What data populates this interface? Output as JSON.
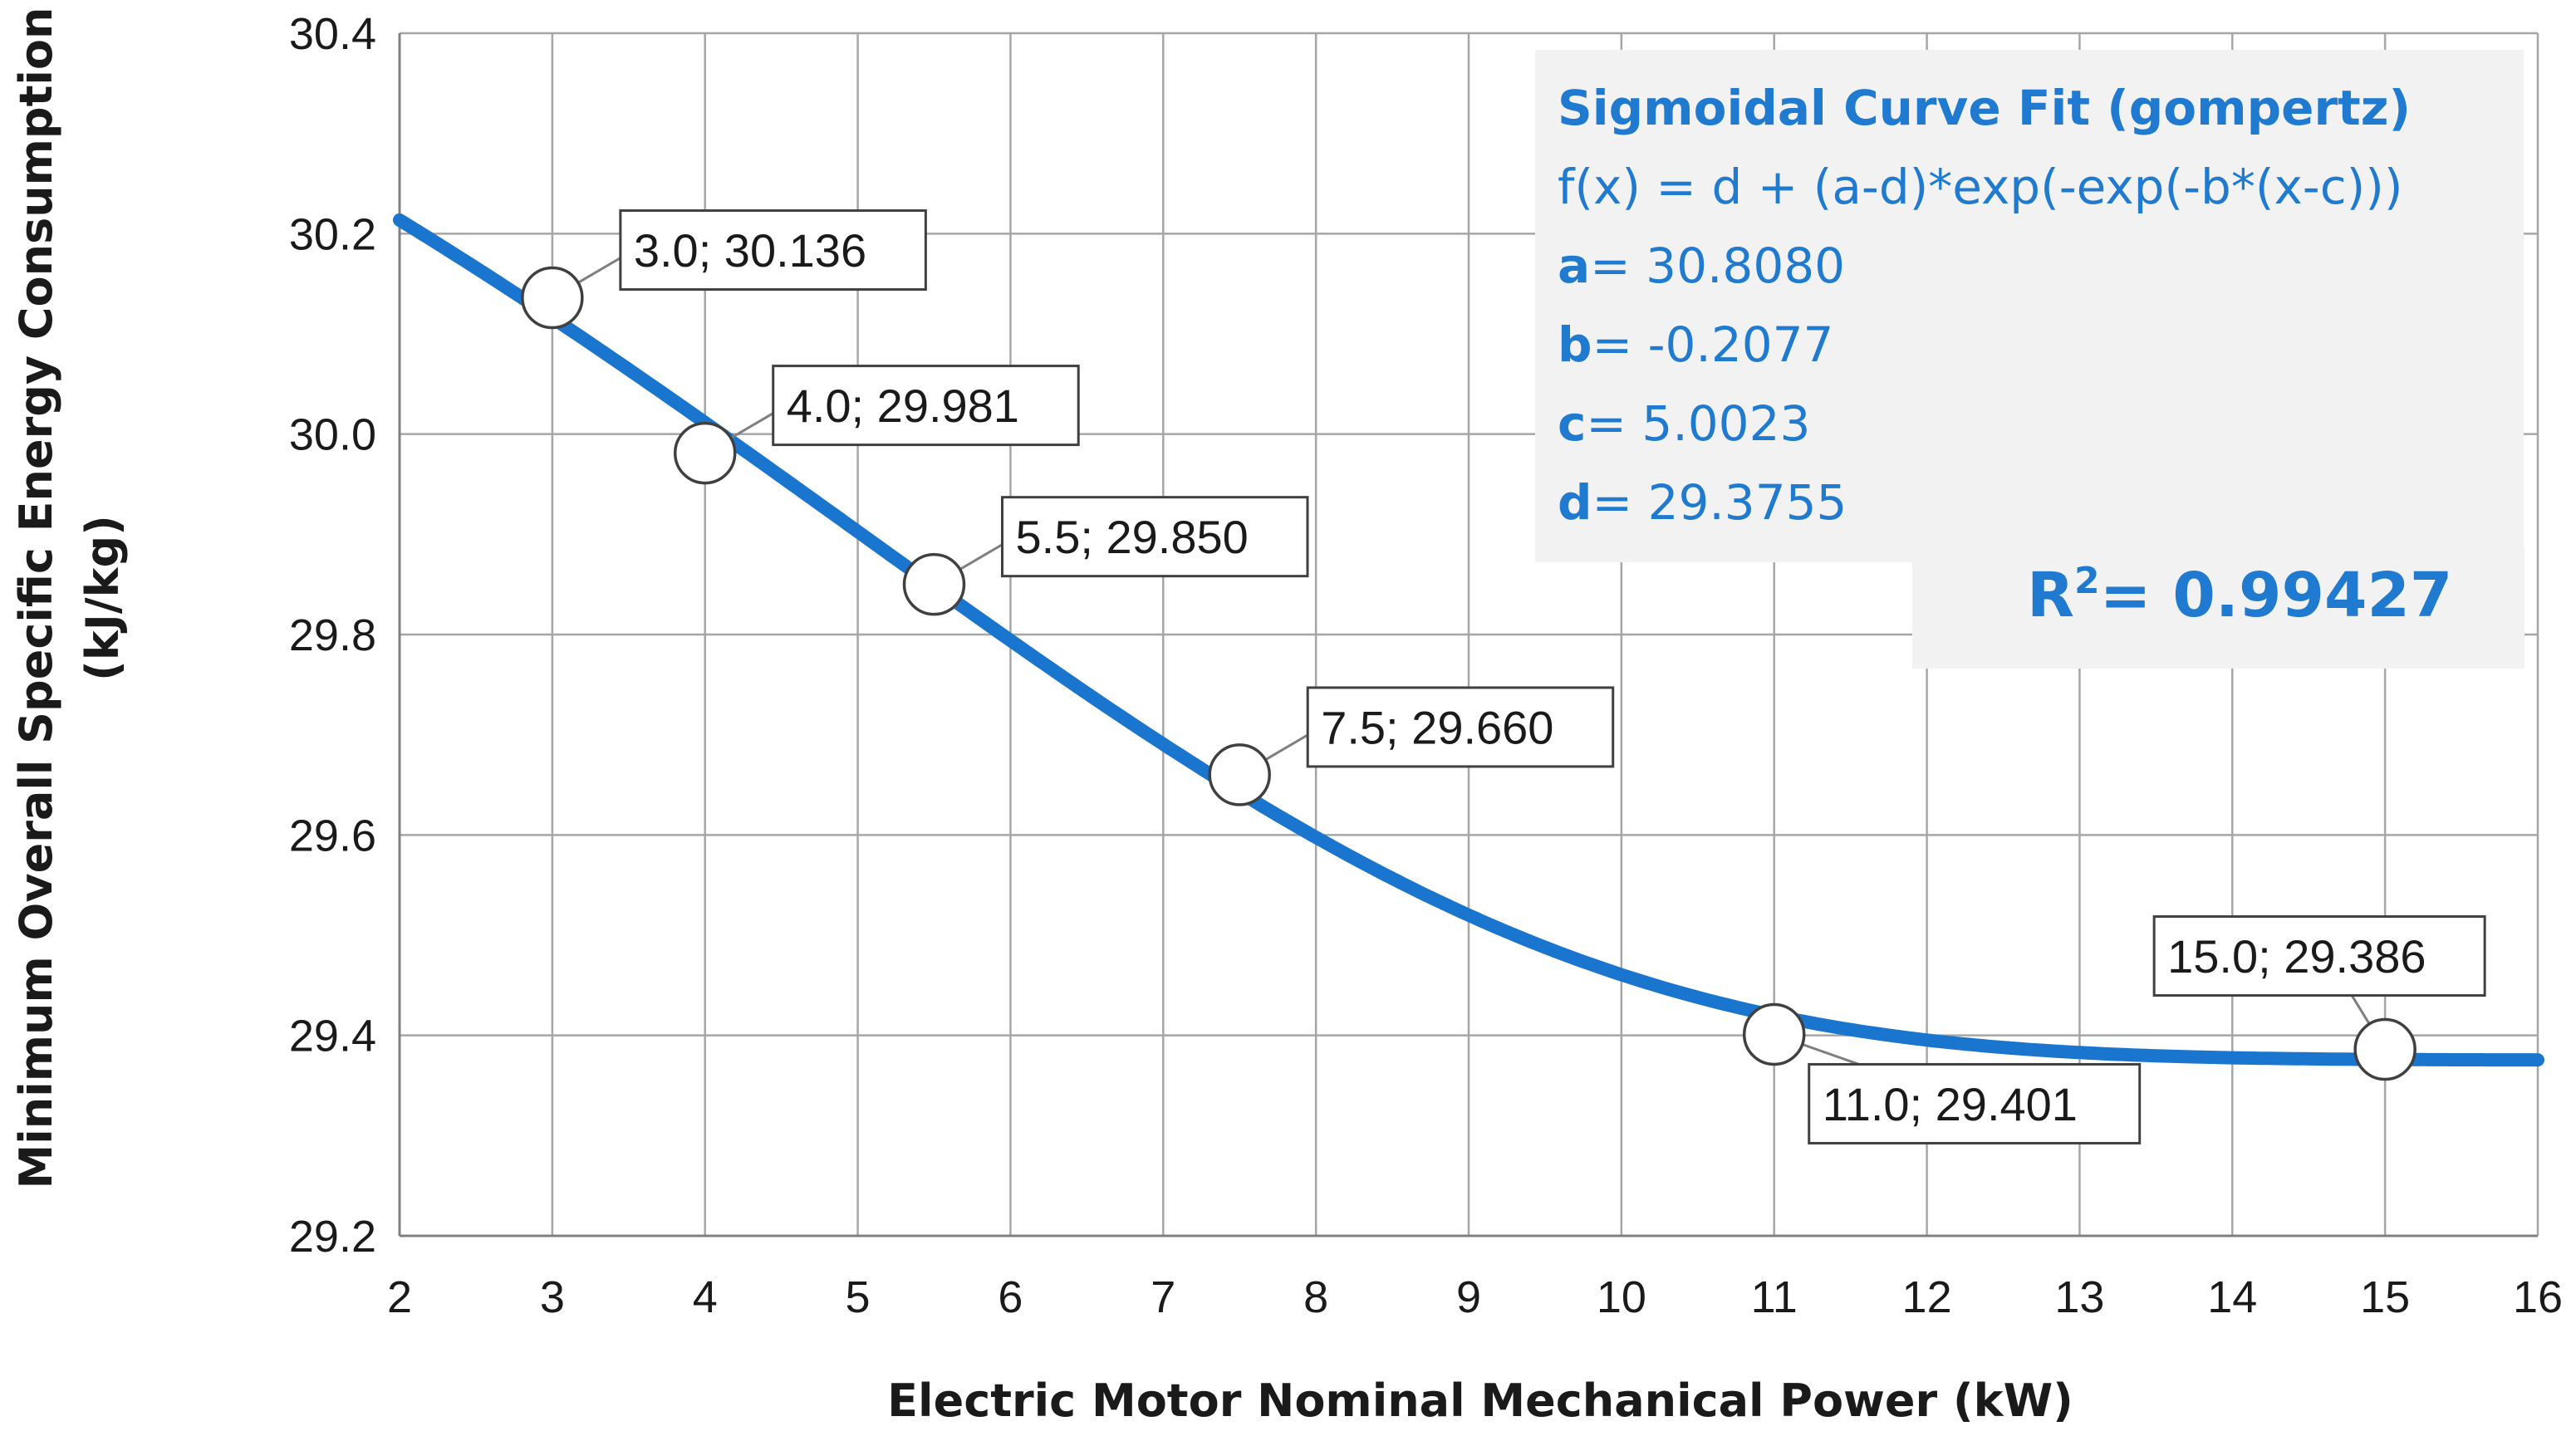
{
  "chart_data": {
    "type": "line",
    "title": "",
    "xlabel": "Electric Motor Nominal Mechanical Power (kW)",
    "ylabel_line1": "Minimum Overall Specific Energy Consumption",
    "ylabel_line2": "(kJ/kg)",
    "xlim": [
      2,
      16
    ],
    "ylim": [
      29.2,
      30.4
    ],
    "x_ticks": [
      2,
      3,
      4,
      5,
      6,
      7,
      8,
      9,
      10,
      11,
      12,
      13,
      14,
      15,
      16
    ],
    "x_tick_labels": [
      "2",
      "3",
      "4",
      "5",
      "6",
      "7",
      "8",
      "9",
      "10",
      "11",
      "12",
      "13",
      "14",
      "15",
      "16"
    ],
    "y_ticks": [
      29.2,
      29.4,
      29.6,
      29.8,
      30.0,
      30.2,
      30.4
    ],
    "y_tick_labels": [
      "29.2",
      "29.4",
      "29.6",
      "29.8",
      "30.0",
      "30.2",
      "30.4"
    ],
    "grid": true,
    "series": [
      {
        "name": "Sigmoidal curve fit",
        "kind": "curve",
        "color": "#1a75cf",
        "model": "gompertz",
        "params": {
          "a": 30.808,
          "b": -0.2077,
          "c": 5.0023,
          "d": 29.3755
        }
      },
      {
        "name": "Data points",
        "kind": "markers",
        "x": [
          3.0,
          4.0,
          5.5,
          7.5,
          11.0,
          15.0
        ],
        "y": [
          30.136,
          29.981,
          29.85,
          29.66,
          29.401,
          29.386
        ],
        "labels": [
          "3.0; 30.136",
          "4.0; 29.981",
          "5.5; 29.850",
          "7.5; 29.660",
          "11.0; 29.401",
          "15.0; 29.386"
        ],
        "label_placement": [
          "upper-right",
          "upper-right",
          "upper-right",
          "upper-right",
          "lower-right",
          "upper-left"
        ]
      }
    ],
    "annotation": {
      "title": "Sigmoidal Curve Fit (gompertz)",
      "formula": "f(x) = d + (a-d)*exp(-exp(-b*(x-c)))",
      "params": [
        {
          "name": "a",
          "value": "= 30.8080"
        },
        {
          "name": "b",
          "value": "= -0.2077"
        },
        {
          "name": "c",
          "value": "= 5.0023"
        },
        {
          "name": "d",
          "value": "= 29.3755"
        }
      ],
      "r2_label": "R",
      "r2_sup": "2",
      "r2_value": "= 0.99427",
      "placement": "top-right"
    }
  }
}
